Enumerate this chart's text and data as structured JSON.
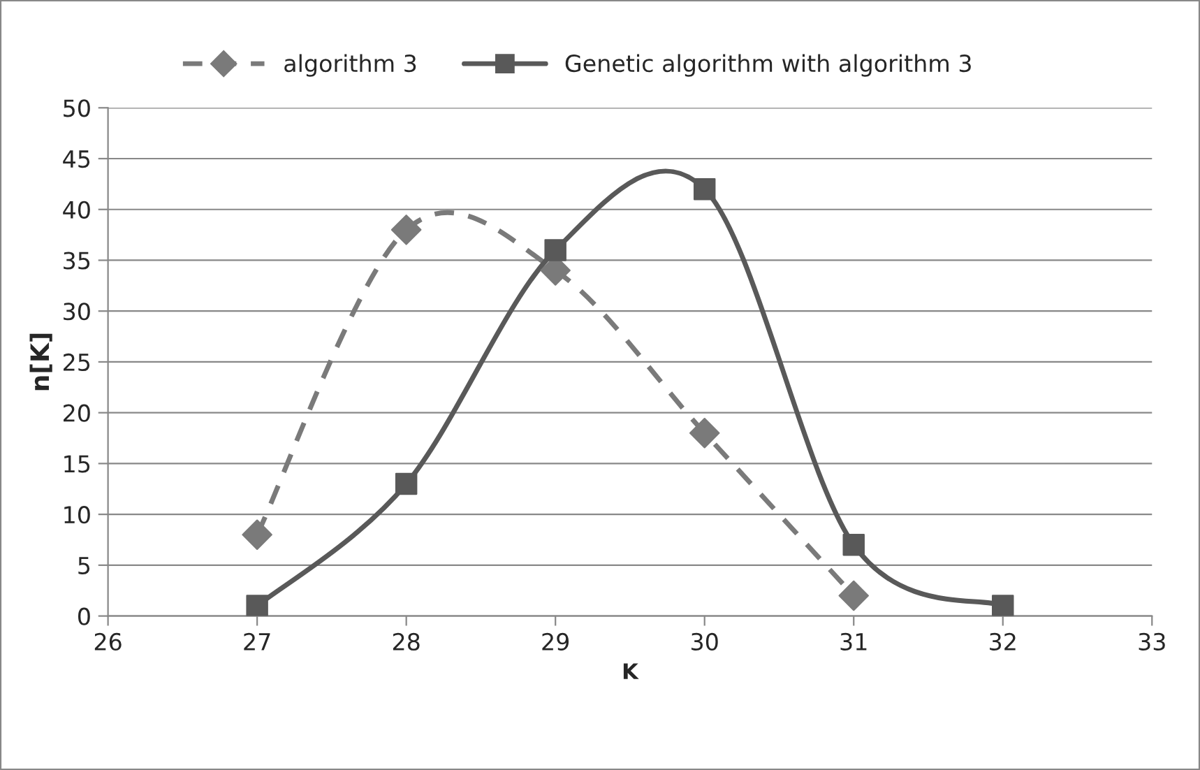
{
  "chart_data": {
    "type": "line",
    "xlabel": "K",
    "ylabel": "n[K]",
    "xlim": [
      26,
      33
    ],
    "xticks": [
      26,
      27,
      28,
      29,
      30,
      31,
      32,
      33
    ],
    "ylim": [
      0,
      50
    ],
    "yticks": [
      0,
      5,
      10,
      15,
      20,
      25,
      30,
      35,
      40,
      45,
      50
    ],
    "grid": "y",
    "legend": "top",
    "series": [
      {
        "name": "algorithm 3",
        "color": "#7a7a7a",
        "marker": "diamond",
        "line_style": "dashed",
        "x": [
          27,
          28,
          29,
          30,
          31
        ],
        "values": [
          8,
          38,
          34,
          18,
          2
        ]
      },
      {
        "name": "Genetic algorithm with algorithm 3",
        "color": "#595959",
        "marker": "square",
        "line_style": "solid",
        "x": [
          27,
          28,
          29,
          30,
          31,
          32
        ],
        "values": [
          1,
          13,
          36,
          42,
          7,
          1
        ]
      }
    ]
  }
}
